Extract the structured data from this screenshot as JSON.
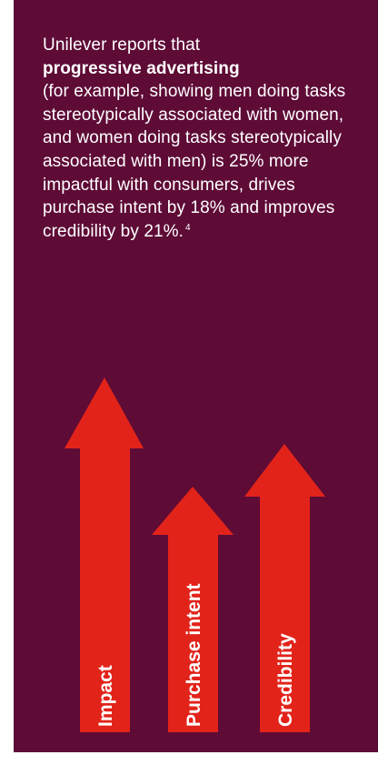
{
  "text": {
    "intro": "Unilever reports that",
    "emphasis": "progressive advertising",
    "body": "(for example, showing men doing tasks stereotypically associated with women, and women doing tasks stereotypically associated with men) is 25% more impactful with consumers, drives purchase intent by 18% and improves credibility by 21%.",
    "footnote": "4"
  },
  "arrows": [
    {
      "label": "Impact",
      "value": "25%"
    },
    {
      "label": "Purchase intent",
      "value": "18%"
    },
    {
      "label": "Credibility",
      "value": "21%"
    }
  ],
  "colors": {
    "background": "#5e0b36",
    "arrow": "#e2231a",
    "text": "#ffffff"
  }
}
